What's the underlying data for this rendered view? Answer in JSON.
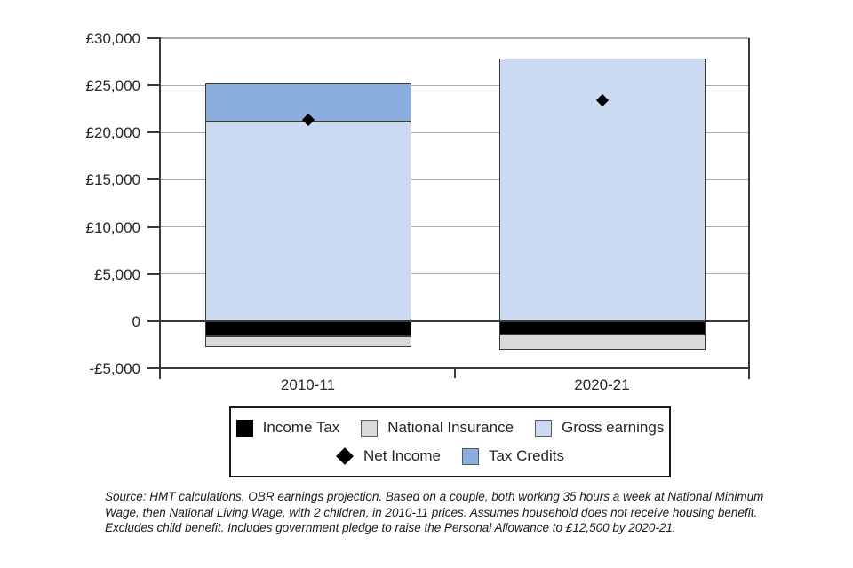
{
  "chart_data": {
    "type": "bar",
    "subtype": "stacked-bars-with-point-markers",
    "title": "",
    "xlabel": "",
    "ylabel": "",
    "categories": [
      "2010-11",
      "2020-21"
    ],
    "series": [
      {
        "name": "Income Tax",
        "color": "#000000",
        "values": [
          -1600,
          -1450
        ]
      },
      {
        "name": "National Insurance",
        "color": "#d9d9d9",
        "values": [
          -1100,
          -1600
        ]
      },
      {
        "name": "Gross earnings",
        "color": "#ccdaf1",
        "values": [
          21200,
          27800
        ]
      },
      {
        "name": "Tax Credits",
        "color": "#8aaede",
        "values": [
          4000,
          0
        ]
      }
    ],
    "point_series": {
      "name": "Net Income",
      "marker": "diamond",
      "color": "#000000",
      "values": [
        21300,
        23450
      ]
    },
    "ylim": [
      -5000,
      30000
    ],
    "ytick_step": 5000,
    "yticks": [
      {
        "value": 30000,
        "label": "£30,000"
      },
      {
        "value": 25000,
        "label": "£25,000"
      },
      {
        "value": 20000,
        "label": "£20,000"
      },
      {
        "value": 15000,
        "label": "£15,000"
      },
      {
        "value": 10000,
        "label": "£10,000"
      },
      {
        "value": 5000,
        "label": "£5,000"
      },
      {
        "value": 0,
        "label": "0"
      },
      {
        "value": -5000,
        "label": "-£5,000"
      }
    ],
    "grid": true,
    "legend_position": "bottom",
    "colors": {
      "gridline": "#ababab",
      "axis": "#3a3a3a",
      "income_tax": "#000000",
      "national_insurance": "#d9d9d9",
      "gross_earnings": "#ccdaf1",
      "tax_credits": "#8aaede",
      "net_income_marker": "#000000"
    }
  },
  "legend": {
    "rows": [
      [
        {
          "label": "Income Tax",
          "swatch": "square",
          "color": "#000000"
        },
        {
          "label": "National Insurance",
          "swatch": "square",
          "color": "#d9d9d9"
        },
        {
          "label": "Gross earnings",
          "swatch": "square",
          "color": "#ccdaf1"
        }
      ],
      [
        {
          "label": "Net Income",
          "swatch": "diamond",
          "color": "#000000"
        },
        {
          "label": "Tax Credits",
          "swatch": "square",
          "color": "#8aaede"
        }
      ]
    ]
  },
  "source_note": "Source: HMT calculations, OBR earnings projection. Based on a couple, both working 35 hours a week at National Minimum Wage, then National Living Wage, with 2 children, in 2010-11 prices. Assumes household does not receive housing benefit. Excludes child benefit. Includes government pledge to raise the Personal Allowance to £12,500 by 2020-21."
}
